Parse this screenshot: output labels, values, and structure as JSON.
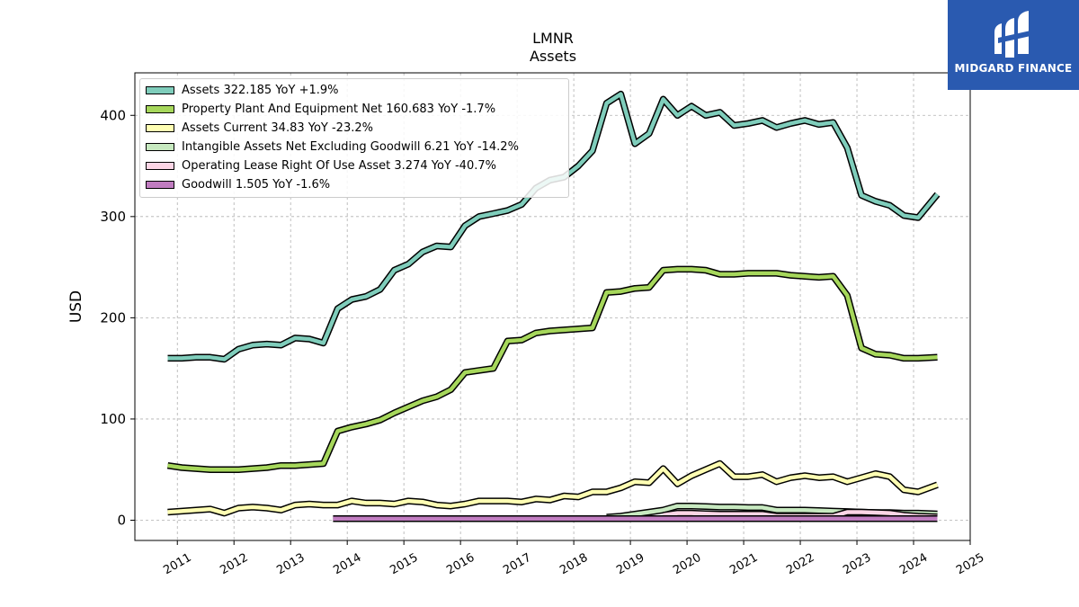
{
  "chart_data": {
    "type": "line",
    "title": "LMNR",
    "subtitle": "Assets",
    "xlabel": "",
    "ylabel": "USD",
    "x_ticks": [
      "2011",
      "2012",
      "2013",
      "2014",
      "2015",
      "2016",
      "2017",
      "2018",
      "2019",
      "2020",
      "2021",
      "2022",
      "2023",
      "2024",
      "2025"
    ],
    "y_ticks": [
      0,
      100,
      200,
      300,
      400
    ],
    "xlim": [
      2010.25,
      2025.0
    ],
    "ylim": [
      -20,
      442
    ],
    "grid": true,
    "legend_position": "upper-left",
    "series": [
      {
        "name": "Assets  322.185 YoY +1.9%",
        "color": "#7fcdbb",
        "points": [
          [
            2010.83,
            160
          ],
          [
            2011.08,
            160
          ],
          [
            2011.33,
            161
          ],
          [
            2011.58,
            161
          ],
          [
            2011.83,
            159
          ],
          [
            2012.08,
            169
          ],
          [
            2012.33,
            173
          ],
          [
            2012.58,
            174
          ],
          [
            2012.83,
            173
          ],
          [
            2013.08,
            180
          ],
          [
            2013.33,
            179
          ],
          [
            2013.58,
            175
          ],
          [
            2013.83,
            209
          ],
          [
            2014.08,
            218
          ],
          [
            2014.33,
            221
          ],
          [
            2014.58,
            228
          ],
          [
            2014.83,
            247
          ],
          [
            2015.08,
            253
          ],
          [
            2015.33,
            265
          ],
          [
            2015.58,
            271
          ],
          [
            2015.83,
            270
          ],
          [
            2016.08,
            291
          ],
          [
            2016.33,
            300
          ],
          [
            2016.58,
            303
          ],
          [
            2016.83,
            306
          ],
          [
            2017.08,
            312
          ],
          [
            2017.33,
            328
          ],
          [
            2017.58,
            336
          ],
          [
            2017.83,
            339
          ],
          [
            2018.08,
            350
          ],
          [
            2018.33,
            365
          ],
          [
            2018.58,
            412
          ],
          [
            2018.83,
            421
          ],
          [
            2019.08,
            372
          ],
          [
            2019.33,
            382
          ],
          [
            2019.58,
            416
          ],
          [
            2019.83,
            400
          ],
          [
            2020.08,
            409
          ],
          [
            2020.33,
            400
          ],
          [
            2020.58,
            403
          ],
          [
            2020.83,
            390
          ],
          [
            2021.08,
            392
          ],
          [
            2021.33,
            395
          ],
          [
            2021.58,
            388
          ],
          [
            2021.83,
            392
          ],
          [
            2022.08,
            395
          ],
          [
            2022.33,
            391
          ],
          [
            2022.58,
            393
          ],
          [
            2022.83,
            368
          ],
          [
            2023.08,
            321
          ],
          [
            2023.33,
            315
          ],
          [
            2023.58,
            311
          ],
          [
            2023.83,
            301
          ],
          [
            2024.08,
            299
          ],
          [
            2024.42,
            322
          ]
        ]
      },
      {
        "name": "Property Plant And Equipment Net  160.683 YoY -1.7%",
        "color": "#a6d75b",
        "points": [
          [
            2010.83,
            54
          ],
          [
            2011.08,
            52
          ],
          [
            2011.33,
            51
          ],
          [
            2011.58,
            50
          ],
          [
            2011.83,
            50
          ],
          [
            2012.08,
            50
          ],
          [
            2012.33,
            51
          ],
          [
            2012.58,
            52
          ],
          [
            2012.83,
            54
          ],
          [
            2013.08,
            54
          ],
          [
            2013.33,
            55
          ],
          [
            2013.58,
            56
          ],
          [
            2013.83,
            88
          ],
          [
            2014.08,
            92
          ],
          [
            2014.33,
            95
          ],
          [
            2014.58,
            99
          ],
          [
            2014.83,
            106
          ],
          [
            2015.08,
            112
          ],
          [
            2015.33,
            118
          ],
          [
            2015.58,
            122
          ],
          [
            2015.83,
            129
          ],
          [
            2016.08,
            146
          ],
          [
            2016.33,
            148
          ],
          [
            2016.58,
            150
          ],
          [
            2016.83,
            177
          ],
          [
            2017.08,
            178
          ],
          [
            2017.33,
            185
          ],
          [
            2017.58,
            187
          ],
          [
            2017.83,
            188
          ],
          [
            2018.08,
            189
          ],
          [
            2018.33,
            190
          ],
          [
            2018.58,
            225
          ],
          [
            2018.83,
            226
          ],
          [
            2019.08,
            229
          ],
          [
            2019.33,
            230
          ],
          [
            2019.58,
            247
          ],
          [
            2019.83,
            248
          ],
          [
            2020.08,
            248
          ],
          [
            2020.33,
            247
          ],
          [
            2020.58,
            243
          ],
          [
            2020.83,
            243
          ],
          [
            2021.08,
            244
          ],
          [
            2021.33,
            244
          ],
          [
            2021.58,
            244
          ],
          [
            2021.83,
            242
          ],
          [
            2022.08,
            241
          ],
          [
            2022.33,
            240
          ],
          [
            2022.58,
            241
          ],
          [
            2022.83,
            222
          ],
          [
            2023.08,
            170
          ],
          [
            2023.33,
            164
          ],
          [
            2023.58,
            163
          ],
          [
            2023.83,
            160
          ],
          [
            2024.08,
            160
          ],
          [
            2024.42,
            161
          ]
        ]
      },
      {
        "name": "Assets Current  34.83 YoY -23.2%",
        "color": "#ffffb3",
        "points": [
          [
            2010.83,
            8
          ],
          [
            2011.08,
            9
          ],
          [
            2011.33,
            10
          ],
          [
            2011.58,
            11
          ],
          [
            2011.83,
            7
          ],
          [
            2012.08,
            12
          ],
          [
            2012.33,
            13
          ],
          [
            2012.58,
            12
          ],
          [
            2012.83,
            10
          ],
          [
            2013.08,
            15
          ],
          [
            2013.33,
            16
          ],
          [
            2013.58,
            15
          ],
          [
            2013.83,
            15
          ],
          [
            2014.08,
            19
          ],
          [
            2014.33,
            17
          ],
          [
            2014.58,
            17
          ],
          [
            2014.83,
            16
          ],
          [
            2015.08,
            19
          ],
          [
            2015.33,
            18
          ],
          [
            2015.58,
            15
          ],
          [
            2015.83,
            14
          ],
          [
            2016.08,
            16
          ],
          [
            2016.33,
            19
          ],
          [
            2016.58,
            19
          ],
          [
            2016.83,
            19
          ],
          [
            2017.08,
            18
          ],
          [
            2017.33,
            21
          ],
          [
            2017.58,
            20
          ],
          [
            2017.83,
            24
          ],
          [
            2018.08,
            23
          ],
          [
            2018.33,
            28
          ],
          [
            2018.58,
            28
          ],
          [
            2018.83,
            32
          ],
          [
            2019.08,
            38
          ],
          [
            2019.33,
            37
          ],
          [
            2019.58,
            51
          ],
          [
            2019.83,
            36
          ],
          [
            2020.08,
            44
          ],
          [
            2020.33,
            50
          ],
          [
            2020.58,
            56
          ],
          [
            2020.83,
            43
          ],
          [
            2021.08,
            43
          ],
          [
            2021.33,
            45
          ],
          [
            2021.58,
            38
          ],
          [
            2021.83,
            42
          ],
          [
            2022.08,
            44
          ],
          [
            2022.33,
            42
          ],
          [
            2022.58,
            43
          ],
          [
            2022.83,
            38
          ],
          [
            2023.08,
            42
          ],
          [
            2023.33,
            46
          ],
          [
            2023.58,
            43
          ],
          [
            2023.83,
            30
          ],
          [
            2024.08,
            28
          ],
          [
            2024.42,
            35
          ]
        ]
      },
      {
        "name": "Intangible Assets Net Excluding Goodwill  6.21 YoY -14.2%",
        "color": "#c7e9c0",
        "points": [
          [
            2018.58,
            3
          ],
          [
            2018.83,
            4
          ],
          [
            2019.08,
            6
          ],
          [
            2019.33,
            8
          ],
          [
            2019.58,
            10
          ],
          [
            2019.83,
            14
          ],
          [
            2020.08,
            14
          ],
          [
            2020.33,
            13.5
          ],
          [
            2020.58,
            13
          ],
          [
            2020.83,
            13
          ],
          [
            2021.08,
            12.5
          ],
          [
            2021.33,
            12.5
          ],
          [
            2021.58,
            10
          ],
          [
            2021.83,
            10
          ],
          [
            2022.08,
            10
          ],
          [
            2022.33,
            9.5
          ],
          [
            2022.58,
            9
          ],
          [
            2022.83,
            8.5
          ],
          [
            2023.08,
            8
          ],
          [
            2023.33,
            7.5
          ],
          [
            2023.58,
            7.5
          ],
          [
            2023.83,
            7
          ],
          [
            2024.08,
            7
          ],
          [
            2024.42,
            6.2
          ]
        ]
      },
      {
        "name": "Operating Lease Right Of Use Asset  3.274 YoY -40.7%",
        "color": "#fcd5e5",
        "points": [
          [
            2019.58,
            5
          ],
          [
            2019.83,
            7
          ],
          [
            2020.08,
            7
          ],
          [
            2020.33,
            6.5
          ],
          [
            2020.58,
            6
          ],
          [
            2020.83,
            6
          ],
          [
            2021.08,
            6
          ],
          [
            2021.33,
            6
          ],
          [
            2021.58,
            4
          ],
          [
            2021.83,
            4
          ],
          [
            2022.08,
            4
          ],
          [
            2022.33,
            4
          ],
          [
            2022.58,
            4
          ],
          [
            2022.83,
            8
          ],
          [
            2023.08,
            8
          ],
          [
            2023.33,
            7.5
          ],
          [
            2023.58,
            7
          ],
          [
            2023.83,
            5
          ],
          [
            2024.08,
            4
          ],
          [
            2024.42,
            3.3
          ]
        ]
      },
      {
        "name": "Goodwill  1.505 YoY -1.6%",
        "color": "#c07cc0",
        "points": [
          [
            2013.75,
            1.5
          ],
          [
            2014.08,
            1.5
          ],
          [
            2015.08,
            1.5
          ],
          [
            2016.08,
            1.5
          ],
          [
            2017.08,
            1.5
          ],
          [
            2018.08,
            1.5
          ],
          [
            2019.08,
            1.5
          ],
          [
            2020.08,
            1.5
          ],
          [
            2021.08,
            1.5
          ],
          [
            2022.08,
            1.5
          ],
          [
            2023.08,
            1.5
          ],
          [
            2024.08,
            1.5
          ],
          [
            2024.42,
            1.5
          ]
        ]
      }
    ]
  },
  "branding": {
    "name": "MIDGARD FINANCE",
    "icon": "midgard-logo-icon"
  }
}
